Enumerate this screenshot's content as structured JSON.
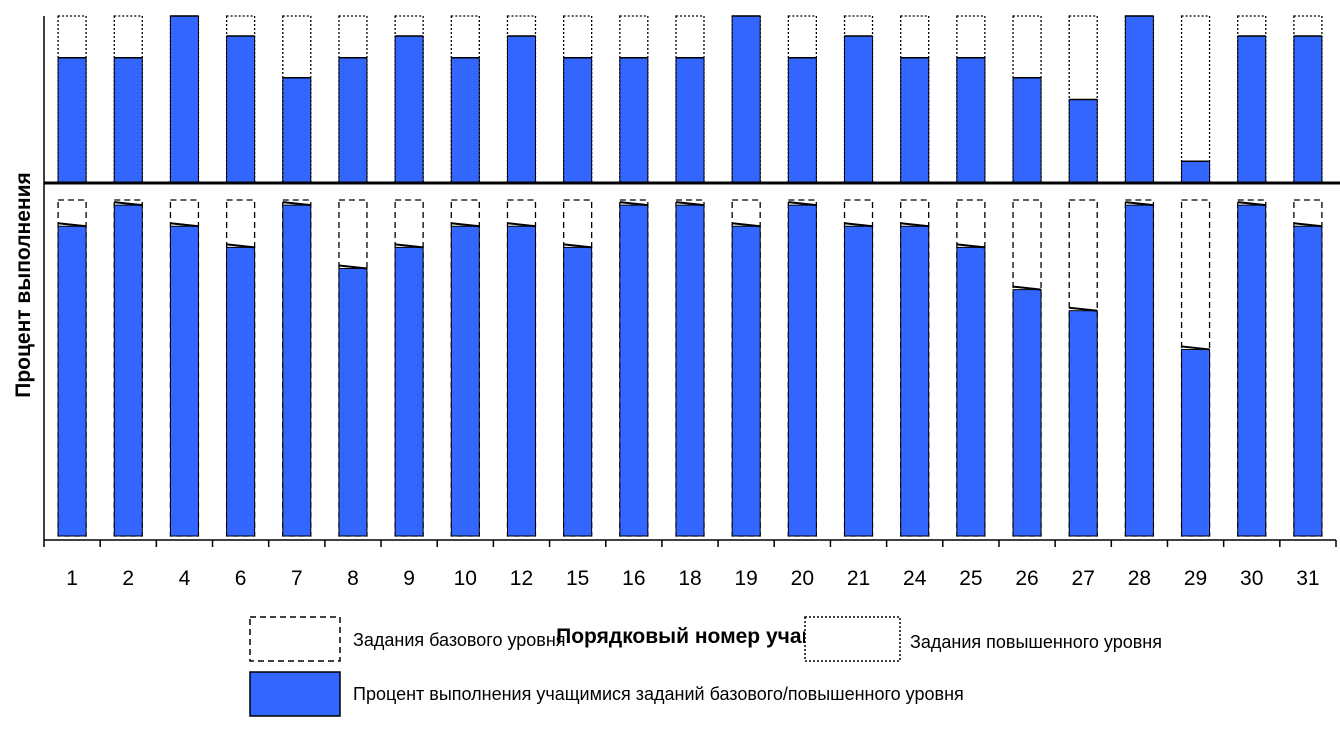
{
  "chart_data": {
    "type": "bar",
    "xlabel": "Порядковый номер учащегося",
    "ylabel": "Процент выполнения",
    "categories": [
      "1",
      "2",
      "4",
      "6",
      "7",
      "8",
      "9",
      "10",
      "12",
      "15",
      "16",
      "18",
      "19",
      "20",
      "21",
      "24",
      "25",
      "26",
      "27",
      "28",
      "29",
      "30",
      "31"
    ],
    "panels": [
      {
        "name": "Задания повышенного уровня",
        "ylim": [
          0,
          100
        ],
        "values": [
          75,
          75,
          100,
          88,
          63,
          75,
          88,
          75,
          88,
          75,
          75,
          75,
          100,
          75,
          88,
          75,
          75,
          63,
          50,
          100,
          13,
          88,
          88
        ]
      },
      {
        "name": "Задания базового уровня",
        "ylim": [
          0,
          100
        ],
        "values": [
          88,
          94,
          88,
          82,
          94,
          76,
          82,
          88,
          88,
          82,
          94,
          94,
          88,
          94,
          88,
          88,
          82,
          70,
          64,
          94,
          53,
          94,
          88
        ]
      }
    ],
    "legend": {
      "placement": "bottom",
      "items": [
        {
          "label": "Задания базового уровня",
          "style": "dashed-outline"
        },
        {
          "label": "Задания повышенного уровня",
          "style": "dotted-outline"
        },
        {
          "label": "Процент выполнения учащимися  заданий базового/повышенного уровня",
          "style": "solid-fill",
          "color": "#3366ff"
        }
      ]
    },
    "colors": {
      "bar": "#3366ff",
      "bar_edge": "#000000"
    }
  }
}
